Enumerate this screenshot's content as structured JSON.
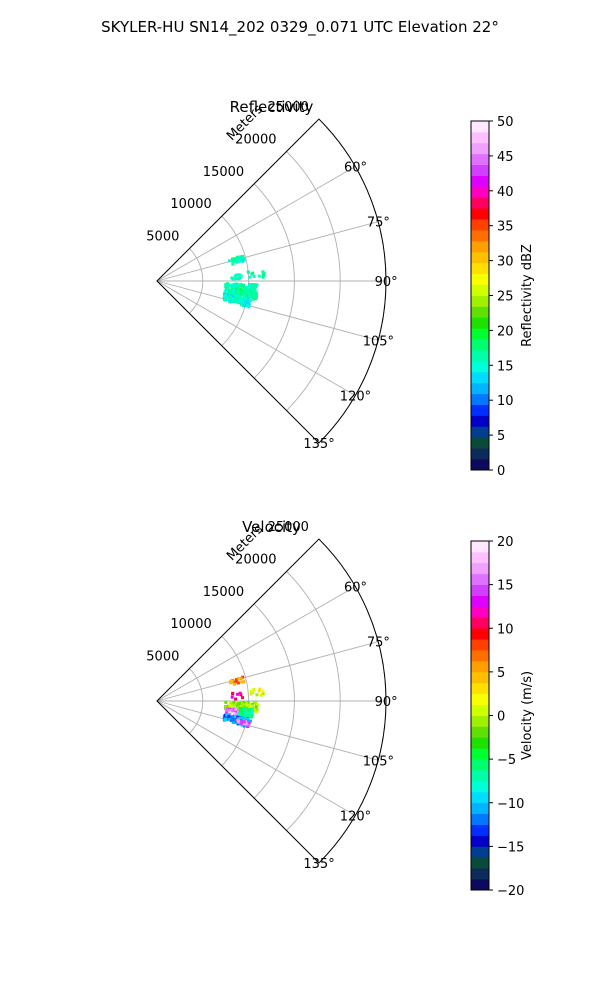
{
  "figure": {
    "suptitle": "SKYLER-HU  SN14_202  0329_0.071 UTC Elevation 22°"
  },
  "chart_data": [
    {
      "type": "scatter",
      "projection": "polar-sector",
      "title": "Reflectivity",
      "radial_label": "Meters",
      "radial_ticks": [
        5000,
        10000,
        15000,
        20000,
        25000
      ],
      "radial_tick_labels": [
        "5000",
        "10000",
        "15000",
        "20000",
        "25000"
      ],
      "rlim": [
        0,
        25000
      ],
      "angle_ticks_deg": [
        60,
        75,
        90,
        105,
        120,
        135
      ],
      "angle_tick_labels": [
        "60°",
        "75°",
        "90°",
        "105°",
        "120°",
        "135°"
      ],
      "thetalim_deg": [
        45,
        135
      ],
      "grid": true,
      "colorbar": {
        "label": "Reflectivity dBZ",
        "range": [
          0,
          50
        ],
        "ticks": [
          0,
          5,
          10,
          15,
          20,
          25,
          30,
          35,
          40,
          45,
          50
        ],
        "tick_labels": [
          "0",
          "5",
          "10",
          "15",
          "20",
          "25",
          "30",
          "35",
          "40",
          "45",
          "50"
        ],
        "colors": [
          "#0b0a5e",
          "#0c2a5a",
          "#0b4a3a",
          "#003f8f",
          "#0000c8",
          "#0030ff",
          "#0078ff",
          "#00b4ff",
          "#00dcff",
          "#00ffd8",
          "#00ffa8",
          "#00ff70",
          "#00ff30",
          "#20e000",
          "#60e000",
          "#a0f000",
          "#d0ff00",
          "#f8ff00",
          "#ffe000",
          "#ffc000",
          "#ffa000",
          "#ff7000",
          "#ff4000",
          "#ff0000",
          "#ff0060",
          "#ff00c0",
          "#e000ff",
          "#d040ff",
          "#e070ff",
          "#f0a0ff",
          "#ffc0ff",
          "#ffe8ff"
        ]
      },
      "clusters": [
        {
          "r": [
            8200,
            9800
          ],
          "theta_deg": [
            73,
            78
          ],
          "value": 16,
          "n": 30
        },
        {
          "r": [
            10000,
            12000
          ],
          "theta_deg": [
            83,
            88
          ],
          "value": 16,
          "n": 12
        },
        {
          "r": [
            8000,
            9500
          ],
          "theta_deg": [
            85,
            90
          ],
          "value": 15,
          "n": 10
        },
        {
          "r": [
            7500,
            11000
          ],
          "theta_deg": [
            92,
            101
          ],
          "value": 16,
          "n": 170
        },
        {
          "r": [
            7500,
            10500
          ],
          "theta_deg": [
            101,
            106
          ],
          "value": 15,
          "n": 110
        },
        {
          "r": [
            9000,
            10500
          ],
          "theta_deg": [
            95,
            99
          ],
          "value": 18,
          "n": 25
        }
      ]
    },
    {
      "type": "scatter",
      "projection": "polar-sector",
      "title": "Velocity",
      "radial_label": "Meters",
      "radial_ticks": [
        5000,
        10000,
        15000,
        20000,
        25000
      ],
      "radial_tick_labels": [
        "5000",
        "10000",
        "15000",
        "20000",
        "25000"
      ],
      "rlim": [
        0,
        25000
      ],
      "angle_ticks_deg": [
        60,
        75,
        90,
        105,
        120,
        135
      ],
      "angle_tick_labels": [
        "60°",
        "75°",
        "90°",
        "105°",
        "120°",
        "135°"
      ],
      "thetalim_deg": [
        45,
        135
      ],
      "grid": true,
      "colorbar": {
        "label": "Velocity (m/s)",
        "range": [
          -20,
          20
        ],
        "ticks": [
          -20,
          -15,
          -10,
          -5,
          0,
          5,
          10,
          15,
          20
        ],
        "tick_labels": [
          "−20",
          "−15",
          "−10",
          "−5",
          "0",
          "5",
          "10",
          "15",
          "20"
        ],
        "colors": [
          "#0b0a5e",
          "#0c2a5a",
          "#0b4a3a",
          "#003f8f",
          "#0000c8",
          "#0030ff",
          "#0078ff",
          "#00b4ff",
          "#00dcff",
          "#00ffd8",
          "#00ffa8",
          "#00ff70",
          "#00ff30",
          "#20e000",
          "#60e000",
          "#a0f000",
          "#d0ff00",
          "#f8ff00",
          "#ffe000",
          "#ffc000",
          "#ffa000",
          "#ff7000",
          "#ff4000",
          "#ff0000",
          "#ff0060",
          "#ff00c0",
          "#e000ff",
          "#d040ff",
          "#e070ff",
          "#f0a0ff",
          "#ffc0ff",
          "#ffe8ff"
        ]
      },
      "clusters": [
        {
          "r": [
            8200,
            9800
          ],
          "theta_deg": [
            73,
            78
          ],
          "value": 6,
          "n": 22
        },
        {
          "r": [
            8200,
            9400
          ],
          "theta_deg": [
            84,
            89
          ],
          "value": 11,
          "n": 8
        },
        {
          "r": [
            10000,
            12000
          ],
          "theta_deg": [
            83,
            88
          ],
          "value": 1,
          "n": 10
        },
        {
          "r": [
            7500,
            11000
          ],
          "theta_deg": [
            91,
            98
          ],
          "value": -1,
          "n": 110
        },
        {
          "r": [
            7500,
            9000
          ],
          "theta_deg": [
            96,
            101
          ],
          "value": 16,
          "n": 25
        },
        {
          "r": [
            9000,
            10500
          ],
          "theta_deg": [
            95,
            100
          ],
          "value": -6,
          "n": 40
        },
        {
          "r": [
            7500,
            10500
          ],
          "theta_deg": [
            101,
            106
          ],
          "value": -11,
          "n": 80
        },
        {
          "r": [
            9000,
            10500
          ],
          "theta_deg": [
            103,
            106
          ],
          "value": 16,
          "n": 20
        }
      ]
    }
  ]
}
